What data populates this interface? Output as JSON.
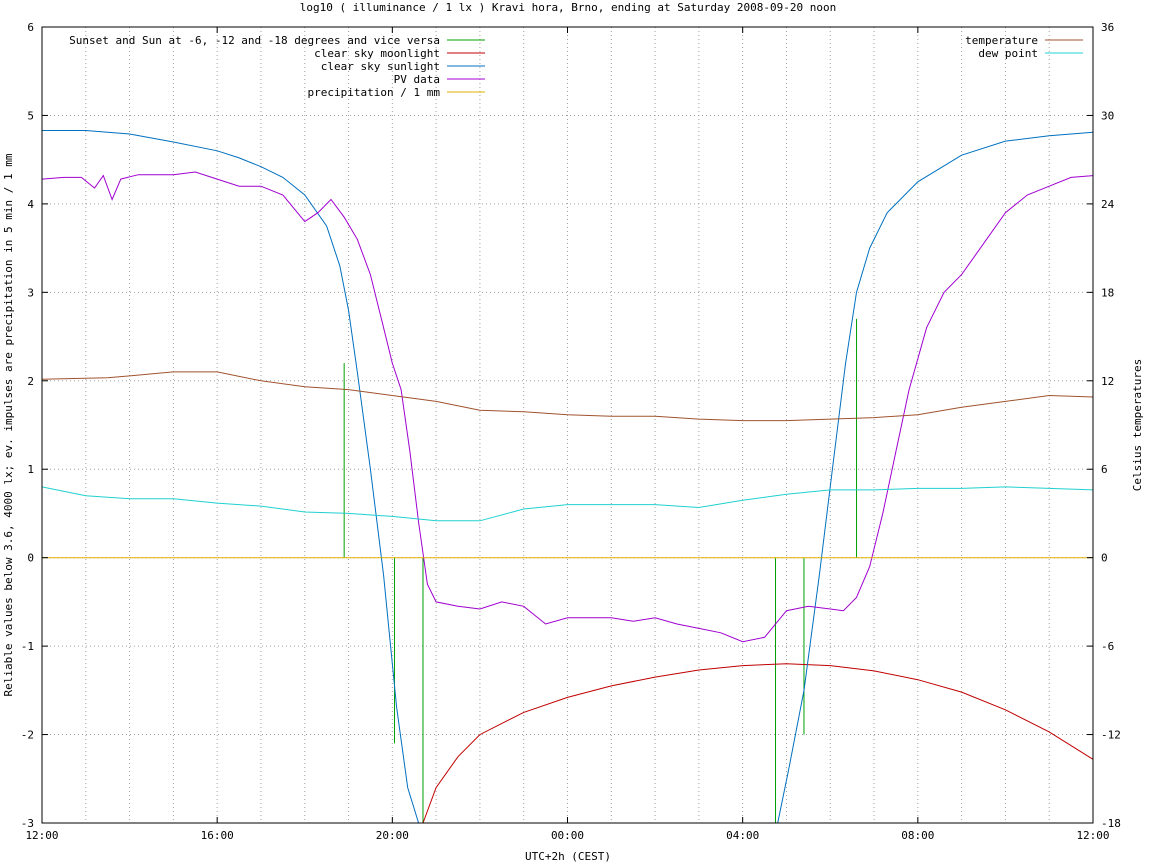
{
  "chart_data": {
    "type": "line",
    "title": "log10 ( illuminance / 1 lx ) Kravi hora, Brno, ending at Saturday 2008-09-20 noon",
    "xlabel": "UTC+2h (CEST)",
    "ylabel": "Reliable values below 3.6, 4000 lx; ev. impulses are precipitation in 5 min / 1 mm",
    "y2label": "Celsius temperatures",
    "x_unit": "hours since 12:00",
    "xlim": [
      0,
      24
    ],
    "ylim": [
      -3,
      6
    ],
    "y2lim": [
      -18,
      36
    ],
    "x_ticks": [
      "12:00",
      "16:00",
      "20:00",
      "00:00",
      "04:00",
      "08:00",
      "12:00"
    ],
    "y_ticks": [
      "-3",
      "-2",
      "-1",
      "0",
      "1",
      "2",
      "3",
      "4",
      "5",
      "6"
    ],
    "y2_ticks": [
      "-18",
      "-12",
      "-6",
      "0",
      "6",
      "12",
      "18",
      "24",
      "30",
      "36"
    ],
    "grid": true,
    "legend_left": "top-left",
    "legend_right": "top-right",
    "series": [
      {
        "name": "Sunset and Sun at -6, -12 and -18 degrees and vice versa",
        "color": "#00a000",
        "style": "impulses",
        "impulses": [
          [
            6.9,
            2.2
          ],
          [
            8.05,
            -2.1
          ],
          [
            8.7,
            -3.0
          ],
          [
            16.75,
            -3.0
          ],
          [
            17.4,
            -2.0
          ],
          [
            18.6,
            2.7
          ]
        ]
      },
      {
        "name": "clear sky moonlight",
        "color": "#c00000",
        "axis": "y",
        "points": [
          [
            8.7,
            -3.0
          ],
          [
            9.0,
            -2.6
          ],
          [
            9.5,
            -2.25
          ],
          [
            10.0,
            -2.0
          ],
          [
            11.0,
            -1.75
          ],
          [
            12.0,
            -1.58
          ],
          [
            13.0,
            -1.45
          ],
          [
            14.0,
            -1.35
          ],
          [
            15.0,
            -1.27
          ],
          [
            16.0,
            -1.22
          ],
          [
            17.0,
            -1.2
          ],
          [
            18.0,
            -1.22
          ],
          [
            19.0,
            -1.28
          ],
          [
            20.0,
            -1.38
          ],
          [
            21.0,
            -1.52
          ],
          [
            22.0,
            -1.72
          ],
          [
            23.0,
            -1.97
          ],
          [
            24.0,
            -2.28
          ]
        ]
      },
      {
        "name": "clear sky sunlight",
        "color": "#0070c0",
        "axis": "y",
        "points": [
          [
            0,
            4.83
          ],
          [
            1,
            4.83
          ],
          [
            2,
            4.79
          ],
          [
            3,
            4.7
          ],
          [
            4,
            4.6
          ],
          [
            4.5,
            4.52
          ],
          [
            5,
            4.42
          ],
          [
            5.5,
            4.3
          ],
          [
            6,
            4.1
          ],
          [
            6.5,
            3.75
          ],
          [
            6.8,
            3.3
          ],
          [
            7.0,
            2.8
          ],
          [
            7.2,
            2.1
          ],
          [
            7.5,
            1.0
          ],
          [
            7.8,
            -0.2
          ],
          [
            8.1,
            -1.7
          ],
          [
            8.35,
            -2.6
          ],
          [
            8.6,
            -3.0
          ],
          [
            16.8,
            -3.0
          ],
          [
            17.05,
            -2.4
          ],
          [
            17.4,
            -1.5
          ],
          [
            17.75,
            -0.2
          ],
          [
            18.05,
            1.0
          ],
          [
            18.35,
            2.2
          ],
          [
            18.6,
            3.0
          ],
          [
            18.9,
            3.5
          ],
          [
            19.3,
            3.9
          ],
          [
            20,
            4.25
          ],
          [
            21,
            4.55
          ],
          [
            22,
            4.71
          ],
          [
            23,
            4.77
          ],
          [
            24,
            4.81
          ]
        ]
      },
      {
        "name": "PV data",
        "color": "#a000d0",
        "axis": "y",
        "points": [
          [
            0,
            4.28
          ],
          [
            0.5,
            4.3
          ],
          [
            0.9,
            4.3
          ],
          [
            1.2,
            4.18
          ],
          [
            1.4,
            4.32
          ],
          [
            1.6,
            4.05
          ],
          [
            1.8,
            4.28
          ],
          [
            2.2,
            4.33
          ],
          [
            3.0,
            4.33
          ],
          [
            3.5,
            4.36
          ],
          [
            4.0,
            4.28
          ],
          [
            4.5,
            4.2
          ],
          [
            5.0,
            4.2
          ],
          [
            5.5,
            4.1
          ],
          [
            6.0,
            3.8
          ],
          [
            6.3,
            3.9
          ],
          [
            6.6,
            4.05
          ],
          [
            6.9,
            3.85
          ],
          [
            7.2,
            3.6
          ],
          [
            7.5,
            3.2
          ],
          [
            7.8,
            2.6
          ],
          [
            8.0,
            2.2
          ],
          [
            8.2,
            1.9
          ],
          [
            8.4,
            1.2
          ],
          [
            8.6,
            0.4
          ],
          [
            8.8,
            -0.3
          ],
          [
            9.0,
            -0.5
          ],
          [
            9.5,
            -0.55
          ],
          [
            10.0,
            -0.58
          ],
          [
            10.5,
            -0.5
          ],
          [
            11.0,
            -0.55
          ],
          [
            11.5,
            -0.75
          ],
          [
            12.0,
            -0.68
          ],
          [
            13.0,
            -0.68
          ],
          [
            13.5,
            -0.72
          ],
          [
            14.0,
            -0.68
          ],
          [
            14.5,
            -0.75
          ],
          [
            15.0,
            -0.8
          ],
          [
            15.5,
            -0.85
          ],
          [
            16.0,
            -0.95
          ],
          [
            16.5,
            -0.9
          ],
          [
            17.0,
            -0.6
          ],
          [
            17.5,
            -0.55
          ],
          [
            18.0,
            -0.58
          ],
          [
            18.3,
            -0.6
          ],
          [
            18.6,
            -0.45
          ],
          [
            18.9,
            -0.1
          ],
          [
            19.2,
            0.5
          ],
          [
            19.5,
            1.2
          ],
          [
            19.8,
            1.9
          ],
          [
            20.2,
            2.6
          ],
          [
            20.6,
            3.0
          ],
          [
            21.0,
            3.2
          ],
          [
            21.5,
            3.55
          ],
          [
            22.0,
            3.9
          ],
          [
            22.5,
            4.1
          ],
          [
            23.0,
            4.2
          ],
          [
            23.5,
            4.3
          ],
          [
            24.0,
            4.32
          ]
        ]
      },
      {
        "name": "precipitation / 1 mm",
        "color": "#e0b000",
        "axis": "y",
        "points": [
          [
            0,
            0
          ],
          [
            24,
            0
          ]
        ]
      },
      {
        "name": "temperature",
        "color": "#a0522d",
        "axis": "y2",
        "points": [
          [
            0,
            12.1
          ],
          [
            1.5,
            12.2
          ],
          [
            3.0,
            12.6
          ],
          [
            4.0,
            12.6
          ],
          [
            5.0,
            12.0
          ],
          [
            6.0,
            11.6
          ],
          [
            7.0,
            11.4
          ],
          [
            8.0,
            11.0
          ],
          [
            9.0,
            10.6
          ],
          [
            10.0,
            10.0
          ],
          [
            11.0,
            9.9
          ],
          [
            12.0,
            9.7
          ],
          [
            13.0,
            9.6
          ],
          [
            14.0,
            9.6
          ],
          [
            15.0,
            9.4
          ],
          [
            16.0,
            9.3
          ],
          [
            17.0,
            9.3
          ],
          [
            18.0,
            9.4
          ],
          [
            19.0,
            9.5
          ],
          [
            20.0,
            9.7
          ],
          [
            21.0,
            10.2
          ],
          [
            22.0,
            10.6
          ],
          [
            23.0,
            11.0
          ],
          [
            24.0,
            10.9
          ]
        ]
      },
      {
        "name": "dew point",
        "color": "#20d0d0",
        "axis": "y2",
        "points": [
          [
            0,
            4.8
          ],
          [
            1.0,
            4.2
          ],
          [
            2.0,
            4.0
          ],
          [
            3.0,
            4.0
          ],
          [
            4.0,
            3.7
          ],
          [
            5.0,
            3.5
          ],
          [
            6.0,
            3.1
          ],
          [
            7.0,
            3.0
          ],
          [
            8.0,
            2.8
          ],
          [
            9.0,
            2.5
          ],
          [
            10.0,
            2.5
          ],
          [
            11.0,
            3.3
          ],
          [
            12.0,
            3.6
          ],
          [
            13.0,
            3.6
          ],
          [
            14.0,
            3.6
          ],
          [
            15.0,
            3.4
          ],
          [
            16.0,
            3.9
          ],
          [
            17.0,
            4.3
          ],
          [
            18.0,
            4.6
          ],
          [
            19.0,
            4.6
          ],
          [
            20.0,
            4.7
          ],
          [
            21.0,
            4.7
          ],
          [
            22.0,
            4.8
          ],
          [
            23.0,
            4.7
          ],
          [
            24.0,
            4.6
          ]
        ]
      }
    ]
  }
}
